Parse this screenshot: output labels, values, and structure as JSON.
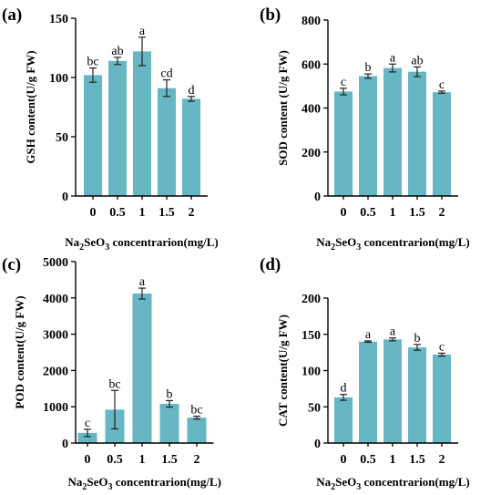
{
  "chart_data": [
    {
      "type": "bar",
      "panel_label": "(a)",
      "ylabel": "GSH content(U/g FW)",
      "xlabel_parts": [
        "Na",
        "2",
        "SeO",
        "3",
        " concentrarion(mg/L)"
      ],
      "categories": [
        "0",
        "0.5",
        "1",
        "1.5",
        "2"
      ],
      "values": [
        102,
        114,
        122,
        91,
        82
      ],
      "errors": [
        6,
        3,
        12,
        7,
        2
      ],
      "labels": [
        "bc",
        "ab",
        "a",
        "cd",
        "d"
      ],
      "ylim": [
        0,
        150
      ],
      "yticks": [
        "0",
        "50",
        "100",
        "150"
      ],
      "bar_color": "#67b6c4"
    },
    {
      "type": "bar",
      "panel_label": "(b)",
      "ylabel": "SOD content (U/g FW)",
      "xlabel_parts": [
        "Na",
        "2",
        "SeO",
        "3",
        " concentrarion(mg/L)"
      ],
      "categories": [
        "0",
        "0.5",
        "1",
        "1.5",
        "2"
      ],
      "values": [
        475,
        545,
        582,
        565,
        472
      ],
      "errors": [
        15,
        10,
        18,
        22,
        5
      ],
      "labels": [
        "c",
        "b",
        "a",
        "ab",
        "c"
      ],
      "ylim": [
        0,
        800
      ],
      "yticks": [
        "0",
        "200",
        "400",
        "600",
        "800"
      ],
      "bar_color": "#67b6c4"
    },
    {
      "type": "bar",
      "panel_label": "(c)",
      "ylabel": "POD content(U/g FW)",
      "xlabel_parts": [
        "Na",
        "2",
        "SeO",
        "3",
        " concentrarion(mg/L)"
      ],
      "categories": [
        "0",
        "0.5",
        "1",
        "1.5",
        "2"
      ],
      "values": [
        280,
        920,
        4120,
        1080,
        700
      ],
      "errors": [
        100,
        530,
        150,
        90,
        40
      ],
      "labels": [
        "c",
        "bc",
        "a",
        "b",
        "bc"
      ],
      "ylim": [
        0,
        5000
      ],
      "yticks": [
        "0",
        "1000",
        "2000",
        "3000",
        "4000",
        "5000"
      ],
      "bar_color": "#67b6c4"
    },
    {
      "type": "bar",
      "panel_label": "(d)",
      "ylabel": "CAT content(U/g FW)",
      "xlabel_parts": [
        "Na",
        "2",
        "SeO",
        "3",
        " concentrarion(mg/L)"
      ],
      "categories": [
        "0",
        "0.5",
        "1",
        "1.5",
        "2"
      ],
      "values": [
        63,
        140,
        143,
        132,
        122
      ],
      "errors": [
        4,
        1,
        2,
        4,
        2
      ],
      "labels": [
        "d",
        "a",
        "a",
        "b",
        "c"
      ],
      "ylim": [
        0,
        200
      ],
      "yticks": [
        "0",
        "50",
        "100",
        "150",
        "200"
      ],
      "bar_color": "#67b6c4"
    }
  ]
}
